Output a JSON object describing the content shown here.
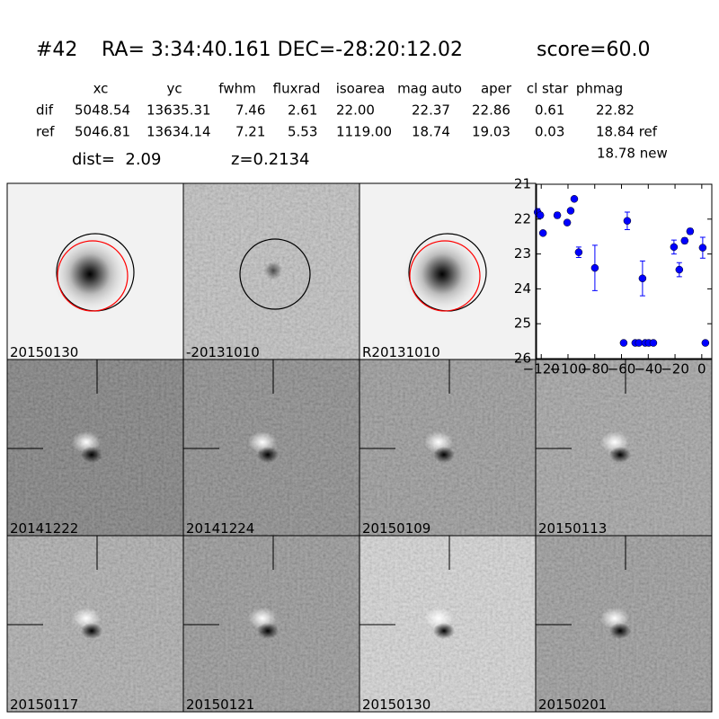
{
  "header": {
    "id": "#42",
    "coords": "RA= 3:34:40.161 DEC=-28:20:12.02",
    "score": "score=60.0"
  },
  "table": {
    "columns": [
      "xc",
      "yc",
      "fwhm",
      "fluxrad",
      "isoarea",
      "mag auto",
      "aper",
      "cl star",
      "phmag"
    ],
    "rows": [
      [
        "dif",
        "5048.54",
        "13635.31",
        "7.46",
        "2.61",
        "22.00",
        "22.37",
        "22.86",
        "0.61",
        "22.82"
      ],
      [
        "ref",
        "5046.81",
        "13634.14",
        "7.21",
        "5.53",
        "1119.00",
        "18.74",
        "19.03",
        "0.03",
        "18.84 ref"
      ]
    ],
    "extra": "18.78 new"
  },
  "info": {
    "dist": "dist=  2.09",
    "z": "z=0.2134"
  },
  "panels": [
    {
      "label": "20150130"
    },
    {
      "label": "-20131010"
    },
    {
      "label": "R20131010"
    },
    {
      "label": "20141222"
    },
    {
      "label": "20141224"
    },
    {
      "label": "20150109"
    },
    {
      "label": "20150113"
    },
    {
      "label": "20150117"
    },
    {
      "label": "20150121"
    },
    {
      "label": "20150130",
      "label_color": "#ff0000"
    },
    {
      "label": "20150201"
    }
  ],
  "chart_data": {
    "type": "scatter",
    "color": "#0000ff",
    "x": [
      -122.7,
      -120.7,
      -118.7,
      -108,
      -100.6,
      -98,
      -95.3,
      -92,
      -79.9,
      -58.4,
      -55.7,
      -49.7,
      -47,
      -44.3,
      -42.3,
      -39.6,
      -36.2,
      -20.8,
      -16.8,
      -12.8,
      -8.7,
      0.7,
      2.7
    ],
    "values": [
      21.8,
      21.89,
      22.4,
      21.89,
      22.1,
      21.76,
      21.42,
      22.95,
      23.4,
      25.55,
      22.05,
      25.55,
      25.55,
      23.7,
      25.55,
      25.55,
      25.55,
      22.8,
      23.45,
      22.62,
      22.35,
      22.82,
      25.55
    ],
    "errors": [
      0.1,
      0.08,
      0.05,
      0.08,
      0.07,
      0.05,
      0.05,
      0.15,
      0.65,
      0.05,
      0.25,
      0.05,
      0.05,
      0.5,
      0.05,
      0.05,
      0.05,
      0.2,
      0.2,
      0.08,
      0.08,
      0.3,
      0.05
    ],
    "xlim": [
      -123.5,
      7.5
    ],
    "ylim": [
      26,
      21
    ],
    "xticks": [
      {
        "value": -120,
        "label": "−120"
      },
      {
        "value": -100,
        "label": "−100"
      },
      {
        "value": -80,
        "label": "−80"
      },
      {
        "value": -60,
        "label": "−60"
      },
      {
        "value": -40,
        "label": "−40"
      },
      {
        "value": -20,
        "label": "−20"
      },
      0
    ],
    "yticks": [
      21,
      22,
      23,
      24,
      25,
      26
    ]
  }
}
